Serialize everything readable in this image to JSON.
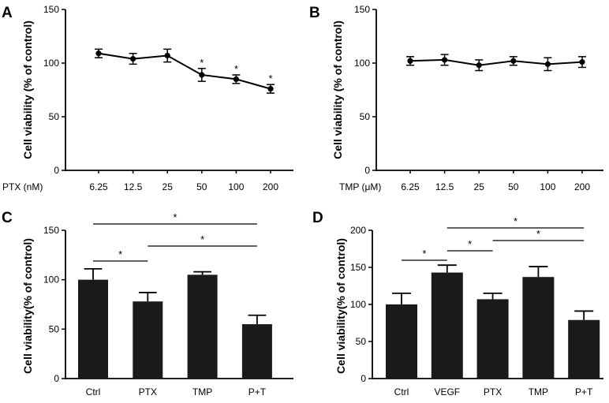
{
  "figure": {
    "panels": [
      {
        "letter": "A",
        "ylabel": "Cell viability (% of control)",
        "xprefix": "PTX (nM)"
      },
      {
        "letter": "B",
        "ylabel": "Cell viability (% of control)",
        "xprefix": "TMP (μM)"
      },
      {
        "letter": "C",
        "ylabel": "Cell viability(% of control)"
      },
      {
        "letter": "D",
        "ylabel": "Cell viability(% of control)"
      }
    ]
  },
  "chart_data": [
    {
      "panel": "A",
      "type": "line",
      "categories": [
        "6.25",
        "12.5",
        "25",
        "50",
        "100",
        "200"
      ],
      "values": [
        109,
        104,
        107,
        89,
        85,
        76
      ],
      "errors": [
        4,
        5,
        6,
        6,
        4,
        4
      ],
      "significant": [
        false,
        false,
        false,
        true,
        true,
        true
      ],
      "ylim": [
        0,
        150
      ],
      "yticks": [
        0,
        50,
        100,
        150
      ],
      "star_label": "*",
      "color": "#000000"
    },
    {
      "panel": "B",
      "type": "line",
      "categories": [
        "6.25",
        "12.5",
        "25",
        "50",
        "100",
        "200"
      ],
      "values": [
        102,
        103,
        98,
        102,
        99,
        101
      ],
      "errors": [
        4,
        5,
        5,
        4,
        6,
        5
      ],
      "significant": [
        false,
        false,
        false,
        false,
        false,
        false
      ],
      "ylim": [
        0,
        150
      ],
      "yticks": [
        0,
        50,
        100,
        150
      ],
      "star_label": "*",
      "color": "#000000"
    },
    {
      "panel": "C",
      "type": "bar",
      "categories": [
        "Ctrl",
        "PTX",
        "TMP",
        "P+T"
      ],
      "values": [
        100,
        78,
        105,
        55
      ],
      "errors": [
        11,
        9,
        3,
        9
      ],
      "ylim": [
        0,
        150
      ],
      "yticks": [
        0,
        50,
        100,
        150
      ],
      "comparisons": [
        {
          "from": 0,
          "to": 3,
          "label": "*"
        },
        {
          "from": 1,
          "to": 3,
          "label": "*"
        },
        {
          "from": 0,
          "to": 1,
          "label": "*"
        }
      ],
      "color": "#1a1a1a"
    },
    {
      "panel": "D",
      "type": "bar",
      "categories": [
        "Ctrl",
        "VEGF",
        "PTX",
        "TMP",
        "P+T"
      ],
      "values": [
        100,
        143,
        107,
        137,
        79
      ],
      "errors": [
        15,
        10,
        8,
        14,
        12
      ],
      "ylim": [
        0,
        200
      ],
      "yticks": [
        0,
        50,
        100,
        150,
        200
      ],
      "comparisons": [
        {
          "from": 1,
          "to": 4,
          "label": "*"
        },
        {
          "from": 2,
          "to": 4,
          "label": "*"
        },
        {
          "from": 1,
          "to": 2,
          "label": "*"
        },
        {
          "from": 0,
          "to": 1,
          "label": "*"
        }
      ],
      "color": "#1a1a1a"
    }
  ]
}
